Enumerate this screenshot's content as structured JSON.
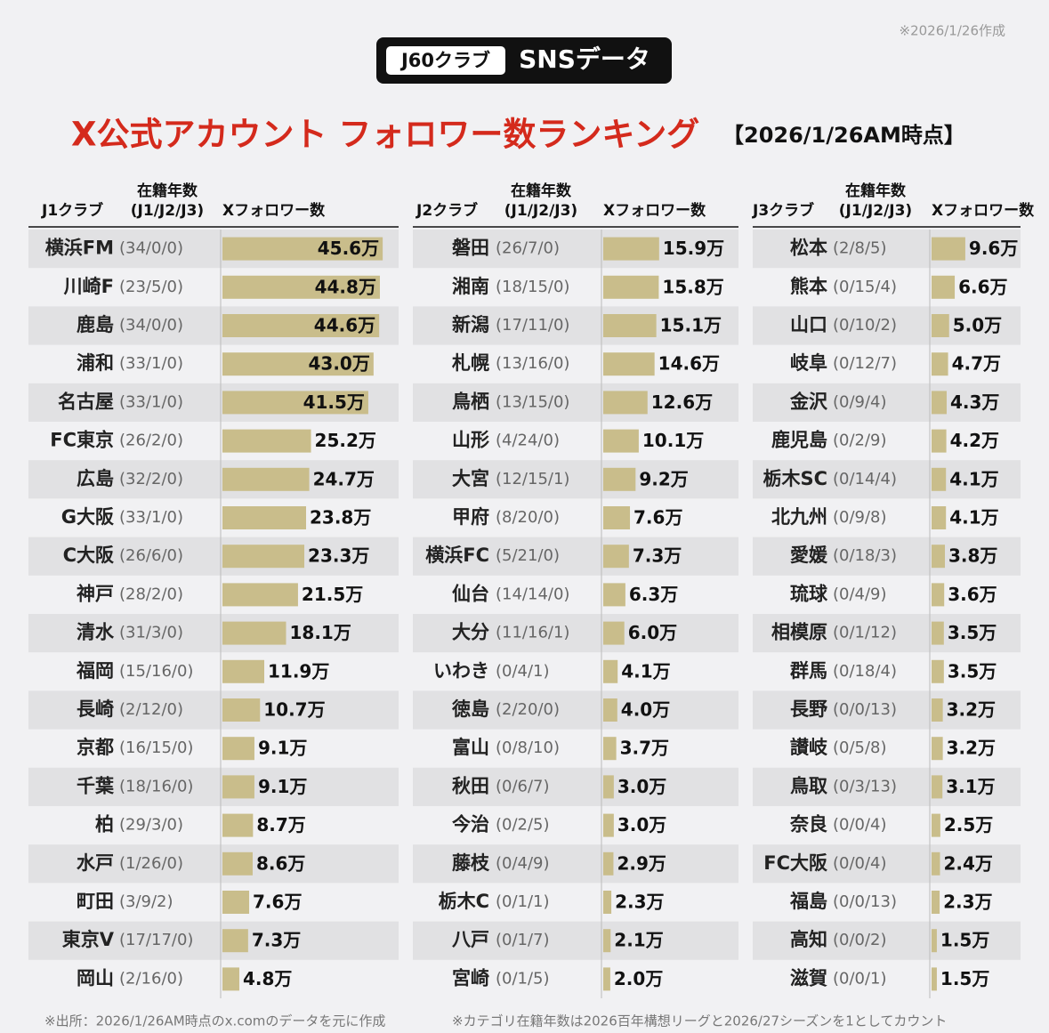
{
  "header": {
    "date_note": "※2026/1/26作成",
    "badge_left": "J60クラブ",
    "badge_right": "SNSデータ",
    "title": "X公式アカウント フォロワー数ランキング",
    "title_date": "【2026/1/26AM時点】"
  },
  "footer": [
    "※出所：2026/1/26AM時点のx.comのデータを元に作成",
    "※カテゴリ在籍年数は2026百年構想リーグと2026/27シーズンを1としてカウント"
  ],
  "chart_data": [
    {
      "type": "bar",
      "club_header": "J1クラブ",
      "tenure_header": "在籍年数",
      "tenure_sub": "(J1/J2/J3)",
      "value_header": "Xフォロワー数",
      "color": "#c9bd8b",
      "xlim": [
        0,
        50
      ],
      "categories": [
        "横浜FM",
        "川崎F",
        "鹿島",
        "浦和",
        "名古屋",
        "FC東京",
        "広島",
        "G大阪",
        "C大阪",
        "神戸",
        "清水",
        "福岡",
        "長崎",
        "京都",
        "千葉",
        "柏",
        "水戸",
        "町田",
        "東京V",
        "岡山"
      ],
      "tenure": [
        "(34/0/0)",
        "(23/5/0)",
        "(34/0/0)",
        "(33/1/0)",
        "(33/1/0)",
        "(26/2/0)",
        "(32/2/0)",
        "(33/1/0)",
        "(26/6/0)",
        "(28/2/0)",
        "(31/3/0)",
        "(15/16/0)",
        "(2/12/0)",
        "(16/15/0)",
        "(18/16/0)",
        "(29/3/0)",
        "(1/26/0)",
        "(3/9/2)",
        "(17/17/0)",
        "(2/16/0)"
      ],
      "values": [
        45.6,
        44.8,
        44.6,
        43.0,
        41.5,
        25.2,
        24.7,
        23.8,
        23.3,
        21.5,
        18.1,
        11.9,
        10.7,
        9.1,
        9.1,
        8.7,
        8.6,
        7.6,
        7.3,
        4.8
      ],
      "value_labels": [
        "45.6万",
        "44.8万",
        "44.6万",
        "43.0万",
        "41.5万",
        "25.2万",
        "24.7万",
        "23.8万",
        "23.3万",
        "21.5万",
        "18.1万",
        "11.9万",
        "10.7万",
        "9.1万",
        "9.1万",
        "8.7万",
        "8.6万",
        "7.6万",
        "7.3万",
        "4.8万"
      ]
    },
    {
      "type": "bar",
      "club_header": "J2クラブ",
      "tenure_header": "在籍年数",
      "tenure_sub": "(J1/J2/J3)",
      "value_header": "Xフォロワー数",
      "color": "#c9bd8b",
      "xlim": [
        0,
        50
      ],
      "categories": [
        "磐田",
        "湘南",
        "新潟",
        "札幌",
        "鳥栖",
        "山形",
        "大宮",
        "甲府",
        "横浜FC",
        "仙台",
        "大分",
        "いわき",
        "徳島",
        "富山",
        "秋田",
        "今治",
        "藤枝",
        "栃木C",
        "八戸",
        "宮崎"
      ],
      "tenure": [
        "(26/7/0)",
        "(18/15/0)",
        "(17/11/0)",
        "(13/16/0)",
        "(13/15/0)",
        "(4/24/0)",
        "(12/15/1)",
        "(8/20/0)",
        "(5/21/0)",
        "(14/14/0)",
        "(11/16/1)",
        "(0/4/1)",
        "(2/20/0)",
        "(0/8/10)",
        "(0/6/7)",
        "(0/2/5)",
        "(0/4/9)",
        "(0/1/1)",
        "(0/1/7)",
        "(0/1/5)"
      ],
      "values": [
        15.9,
        15.8,
        15.1,
        14.6,
        12.6,
        10.1,
        9.2,
        7.6,
        7.3,
        6.3,
        6.0,
        4.1,
        4.0,
        3.7,
        3.0,
        3.0,
        2.9,
        2.3,
        2.1,
        2.0
      ],
      "value_labels": [
        "15.9万",
        "15.8万",
        "15.1万",
        "14.6万",
        "12.6万",
        "10.1万",
        "9.2万",
        "7.6万",
        "7.3万",
        "6.3万",
        "6.0万",
        "4.1万",
        "4.0万",
        "3.7万",
        "3.0万",
        "3.0万",
        "2.9万",
        "2.3万",
        "2.1万",
        "2.0万"
      ]
    },
    {
      "type": "bar",
      "club_header": "J3クラブ",
      "tenure_header": "在籍年数",
      "tenure_sub": "(J1/J2/J3)",
      "value_header": "Xフォロワー数",
      "color": "#c9bd8b",
      "xlim": [
        0,
        50
      ],
      "categories": [
        "松本",
        "熊本",
        "山口",
        "岐阜",
        "金沢",
        "鹿児島",
        "栃木SC",
        "北九州",
        "愛媛",
        "琉球",
        "相模原",
        "群馬",
        "長野",
        "讃岐",
        "鳥取",
        "奈良",
        "FC大阪",
        "福島",
        "高知",
        "滋賀"
      ],
      "tenure": [
        "(2/8/5)",
        "(0/15/4)",
        "(0/10/2)",
        "(0/12/7)",
        "(0/9/4)",
        "(0/2/9)",
        "(0/14/4)",
        "(0/9/8)",
        "(0/18/3)",
        "(0/4/9)",
        "(0/1/12)",
        "(0/18/4)",
        "(0/0/13)",
        "(0/5/8)",
        "(0/3/13)",
        "(0/0/4)",
        "(0/0/4)",
        "(0/0/13)",
        "(0/0/2)",
        "(0/0/1)"
      ],
      "values": [
        9.6,
        6.6,
        5.0,
        4.7,
        4.3,
        4.2,
        4.1,
        4.1,
        3.8,
        3.6,
        3.5,
        3.5,
        3.2,
        3.2,
        3.1,
        2.5,
        2.4,
        2.3,
        1.5,
        1.5
      ],
      "value_labels": [
        "9.6万",
        "6.6万",
        "5.0万",
        "4.7万",
        "4.3万",
        "4.2万",
        "4.1万",
        "4.1万",
        "3.8万",
        "3.6万",
        "3.5万",
        "3.5万",
        "3.2万",
        "3.2万",
        "3.1万",
        "2.5万",
        "2.4万",
        "2.3万",
        "1.5万",
        "1.5万"
      ]
    }
  ]
}
